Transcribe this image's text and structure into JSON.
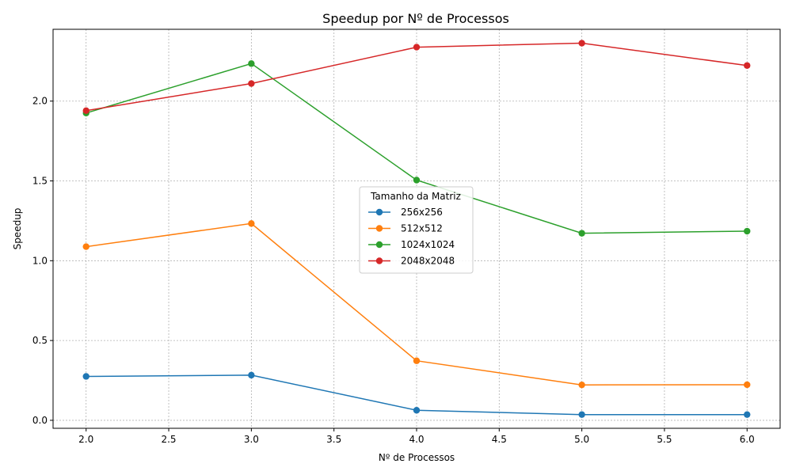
{
  "chart_data": {
    "type": "line",
    "title": "Speedup por Nº de Processos",
    "xlabel": "Nº de Processos",
    "ylabel": "Speedup",
    "x": [
      2,
      3,
      4,
      5,
      6
    ],
    "xlim": [
      1.8,
      6.2
    ],
    "ylim": [
      -0.05,
      2.45
    ],
    "xticks": [
      "2.0",
      "2.5",
      "3.0",
      "3.5",
      "4.0",
      "4.5",
      "5.0",
      "5.5",
      "6.0"
    ],
    "yticks": [
      "0.0",
      "0.5",
      "1.0",
      "1.5",
      "2.0"
    ],
    "grid": true,
    "legend_title": "Tamanho da Matriz",
    "legend_position": "center",
    "series": [
      {
        "name": "256x256",
        "color": "#1f77b4",
        "values": [
          0.275,
          0.283,
          0.063,
          0.036,
          0.036
        ]
      },
      {
        "name": "512x512",
        "color": "#ff7f0e",
        "values": [
          1.088,
          1.233,
          0.373,
          0.222,
          0.223
        ]
      },
      {
        "name": "1024x1024",
        "color": "#2ca02c",
        "values": [
          1.925,
          2.235,
          1.505,
          1.172,
          1.185
        ]
      },
      {
        "name": "2048x2048",
        "color": "#d62728",
        "values": [
          1.94,
          2.11,
          2.338,
          2.363,
          2.223
        ]
      }
    ]
  }
}
